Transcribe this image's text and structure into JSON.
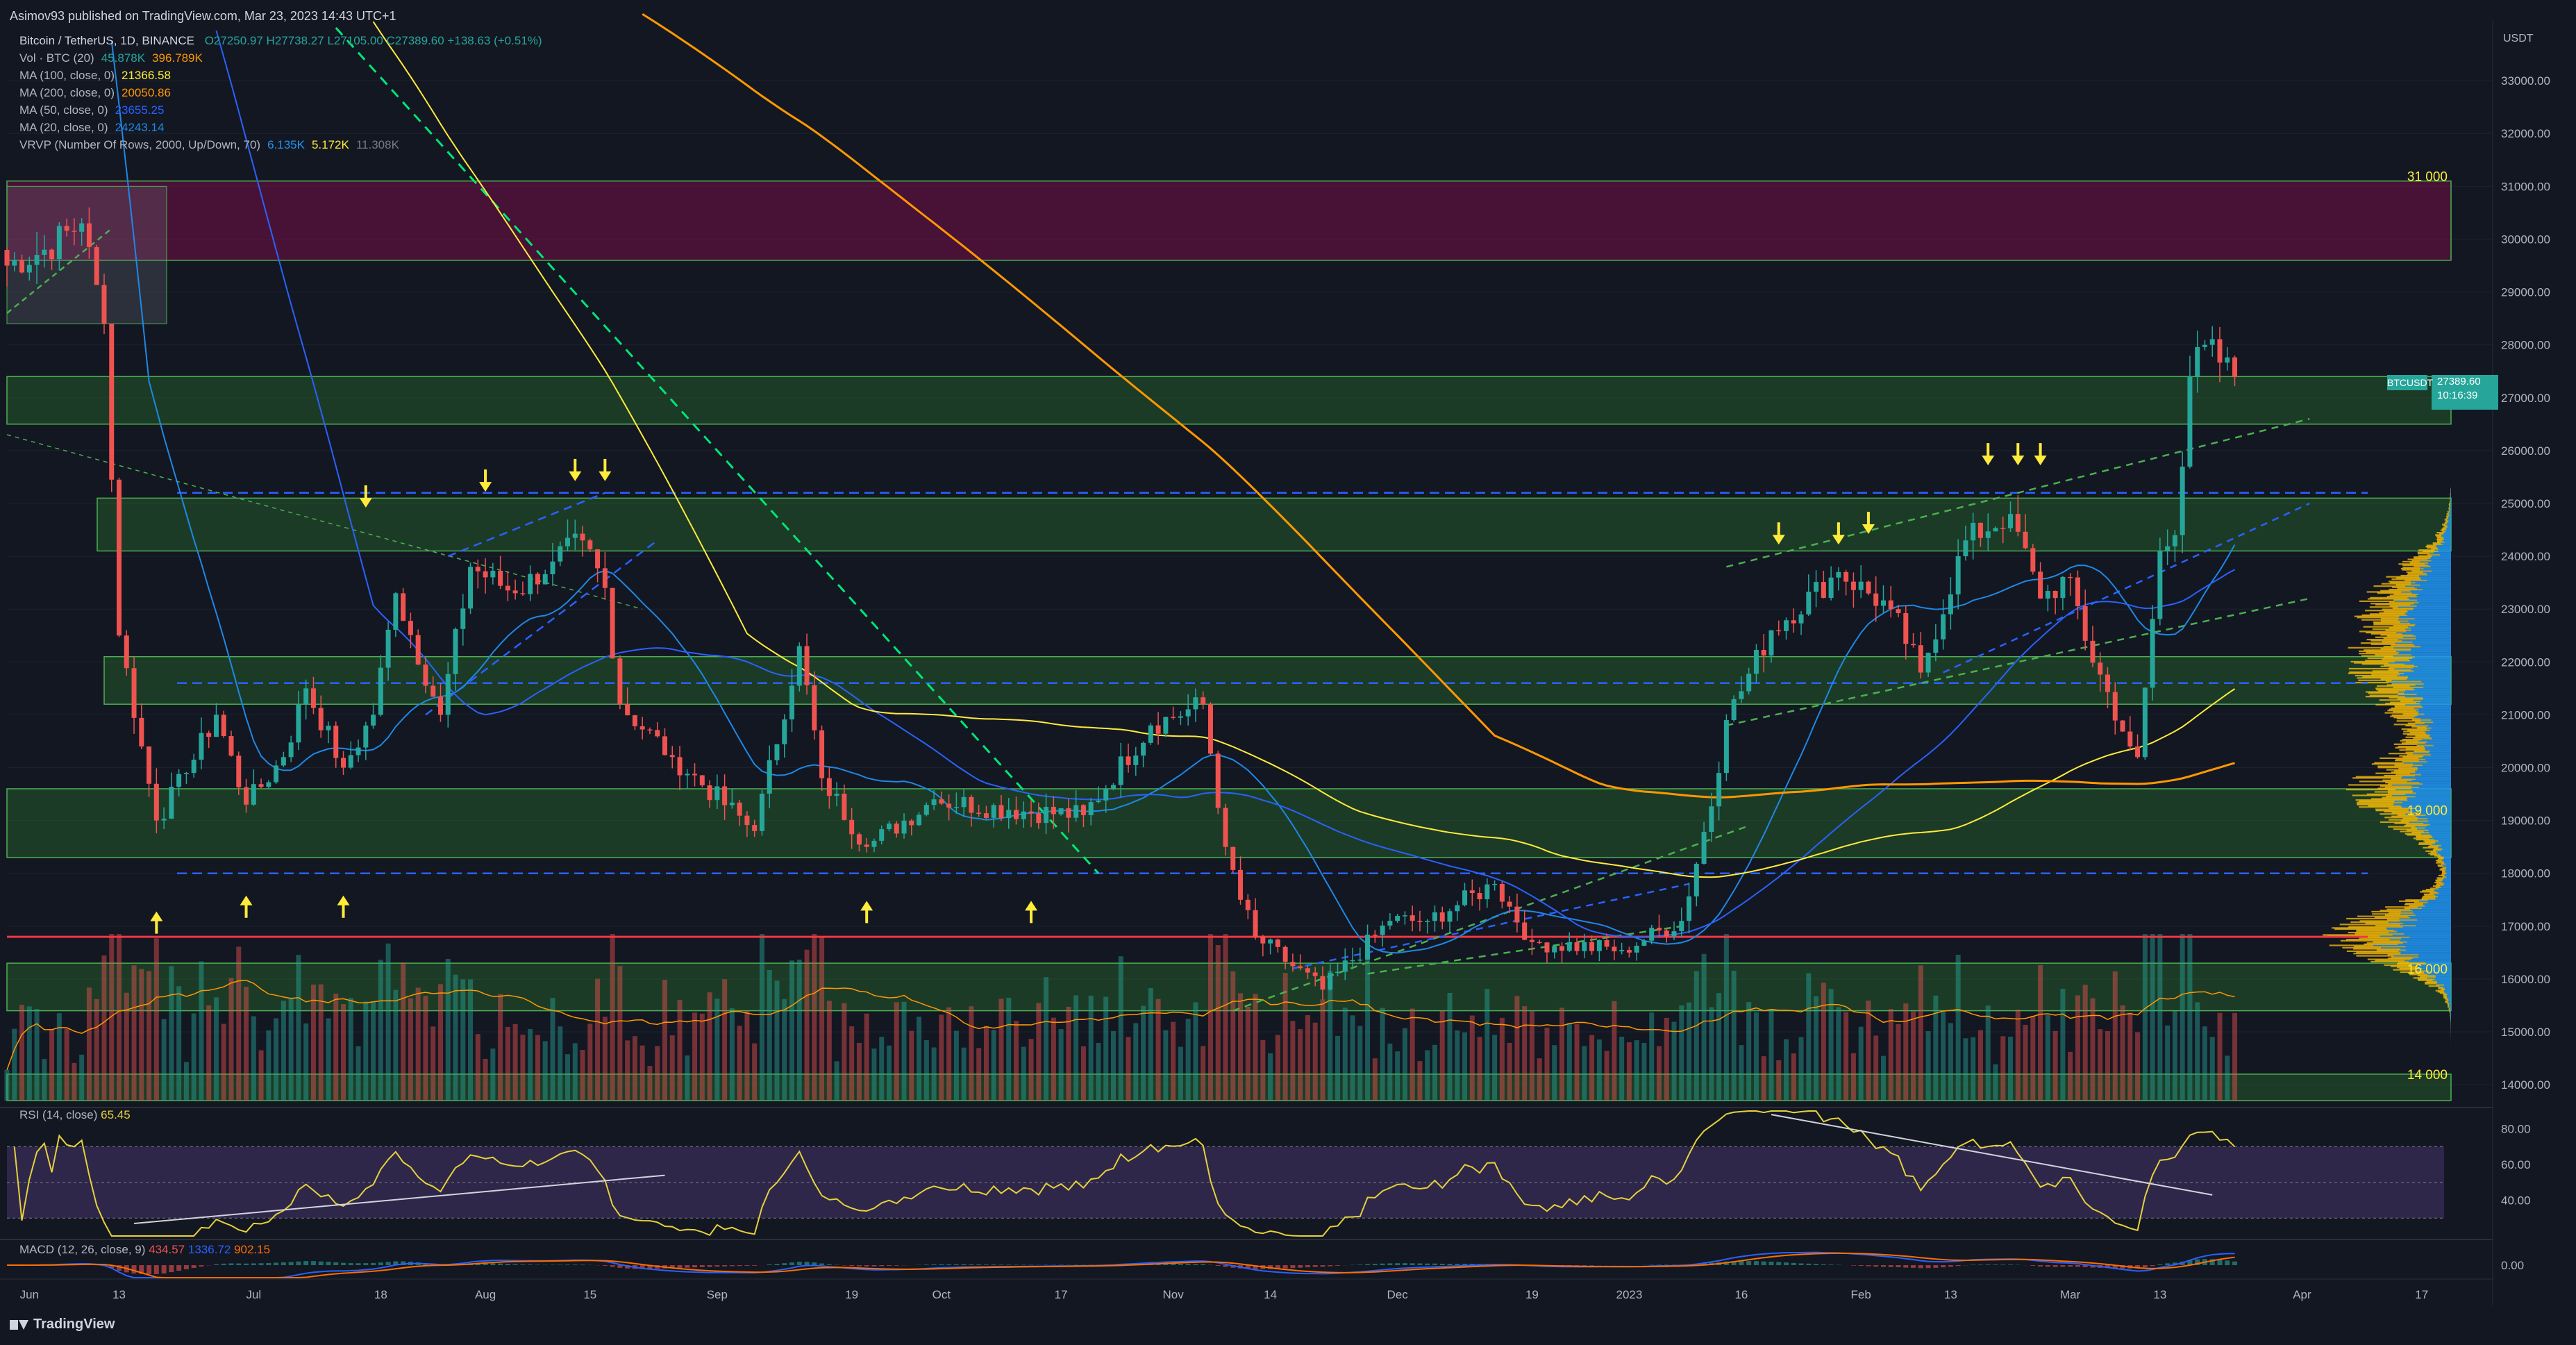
{
  "header": {
    "published": "Asimov93 published on TradingView.com, Mar 23, 2023 14:43 UTC+1",
    "symbol_line": "Bitcoin / TetherUS, 1D, BINANCE",
    "ohlc": "O27250.97 H27738.27 L27105.00 C27389.60 +138.63 (+0.51%)",
    "indicators": [
      {
        "label": "Vol · BTC (20)",
        "v1": "45.878K",
        "v2": "396.789K",
        "c1": "#26a69a",
        "c2": "#ff9800"
      },
      {
        "label": "MA (100, close, 0)",
        "v1": "21366.58",
        "v2": "",
        "c1": "#ffeb3b",
        "c2": ""
      },
      {
        "label": "MA (200, close, 0)",
        "v1": "20050.86",
        "v2": "",
        "c1": "#ff9800",
        "c2": ""
      },
      {
        "label": "MA (50, close, 0)",
        "v1": "23655.25",
        "v2": "",
        "c1": "#2962ff",
        "c2": ""
      },
      {
        "label": "MA (20, close, 0)",
        "v1": "24243.14",
        "v2": "",
        "c1": "#1e88e5",
        "c2": ""
      },
      {
        "label": "VRVP (Number Of Rows, 2000, Up/Down, 70)",
        "v1": "6.135K",
        "v2": "5.172K",
        "v3": "11.308K",
        "c1": "#2196f3",
        "c2": "#ffeb3b"
      }
    ]
  },
  "price_tag": {
    "symbol": "BTCUSDT",
    "price": "27389.60",
    "countdown": "10:16:39"
  },
  "rsi_label": {
    "text": "RSI (14, close)",
    "value": "65.45"
  },
  "macd_label": {
    "text": "MACD (12, 26, close, 9)",
    "v1": "434.57",
    "v2": "1336.72",
    "v3": "902.15"
  },
  "footer": {
    "brand": "TradingView"
  },
  "colors": {
    "up": "#26a69a",
    "down": "#ef5350",
    "bg": "#131722",
    "zone_green": "#1b5e20",
    "zone_red": "#7f1d2d"
  },
  "chart_data": {
    "type": "candlestick",
    "title": "Bitcoin / TetherUS, 1D, BINANCE",
    "y_unit": "USDT",
    "ylim": [
      13700,
      34000
    ],
    "y_ticks": [
      "14000.00",
      "15000.00",
      "16000.00",
      "17000.00",
      "18000.00",
      "19000.00",
      "20000.00",
      "21000.00",
      "22000.00",
      "23000.00",
      "24000.00",
      "25000.00",
      "26000.00",
      "27000.00",
      "28000.00",
      "29000.00",
      "30000.00",
      "31000.00",
      "32000.00",
      "33000.00"
    ],
    "x_ticks": [
      "Jun",
      "13",
      "Jul",
      "18",
      "Aug",
      "15",
      "Sep",
      "19",
      "Oct",
      "17",
      "Nov",
      "14",
      "Dec",
      "19",
      "2023",
      "16",
      "Feb",
      "13",
      "Mar",
      "13",
      "Apr",
      "17"
    ],
    "level_labels": [
      "31 000",
      "19 000",
      "16 000",
      "14 000"
    ],
    "close_anchors": [
      [
        "2022-05-29",
        29500
      ],
      [
        "2022-06-03",
        29800
      ],
      [
        "2022-06-08",
        30300
      ],
      [
        "2022-06-11",
        28400
      ],
      [
        "2022-06-13",
        22500
      ],
      [
        "2022-06-16",
        20400
      ],
      [
        "2022-06-18",
        19000
      ],
      [
        "2022-06-22",
        19900
      ],
      [
        "2022-06-26",
        21000
      ],
      [
        "2022-06-30",
        19300
      ],
      [
        "2022-07-05",
        20200
      ],
      [
        "2022-07-08",
        21500
      ],
      [
        "2022-07-13",
        20000
      ],
      [
        "2022-07-17",
        21000
      ],
      [
        "2022-07-20",
        23300
      ],
      [
        "2022-07-26",
        21000
      ],
      [
        "2022-07-30",
        23800
      ],
      [
        "2022-08-05",
        23300
      ],
      [
        "2022-08-10",
        23900
      ],
      [
        "2022-08-14",
        24300
      ],
      [
        "2022-08-17",
        23400
      ],
      [
        "2022-08-19",
        21200
      ],
      [
        "2022-08-26",
        20200
      ],
      [
        "2022-09-06",
        18800
      ],
      [
        "2022-09-12",
        22300
      ],
      [
        "2022-09-15",
        19800
      ],
      [
        "2022-09-21",
        18500
      ],
      [
        "2022-09-30",
        19400
      ],
      [
        "2022-10-10",
        19200
      ],
      [
        "2022-10-20",
        19100
      ],
      [
        "2022-10-29",
        20800
      ],
      [
        "2022-11-05",
        21200
      ],
      [
        "2022-11-08",
        18500
      ],
      [
        "2022-11-10",
        17500
      ],
      [
        "2022-11-12",
        16800
      ],
      [
        "2022-11-21",
        15800
      ],
      [
        "2022-11-30",
        17100
      ],
      [
        "2022-12-05",
        17100
      ],
      [
        "2022-12-14",
        17800
      ],
      [
        "2022-12-19",
        16700
      ],
      [
        "2022-12-31",
        16550
      ],
      [
        "2023-01-08",
        17100
      ],
      [
        "2023-01-13",
        19900
      ],
      [
        "2023-01-14",
        20900
      ],
      [
        "2023-01-20",
        22600
      ],
      [
        "2023-01-29",
        23700
      ],
      [
        "2023-02-05",
        23000
      ],
      [
        "2023-02-09",
        21800
      ],
      [
        "2023-02-15",
        24300
      ],
      [
        "2023-02-21",
        24800
      ],
      [
        "2023-02-25",
        23200
      ],
      [
        "2023-03-01",
        23600
      ],
      [
        "2023-03-03",
        22400
      ],
      [
        "2023-03-09",
        20400
      ],
      [
        "2023-03-10",
        20200
      ],
      [
        "2023-03-13",
        24100
      ],
      [
        "2023-03-15",
        24400
      ],
      [
        "2023-03-17",
        27400
      ],
      [
        "2023-03-19",
        28000
      ],
      [
        "2023-03-23",
        27389.6
      ]
    ],
    "moving_averages": [
      {
        "name": "MA (20, close, 0)",
        "color": "#1e88e5",
        "last": 24243.14
      },
      {
        "name": "MA (50, close, 0)",
        "color": "#2962ff",
        "last": 23655.25
      },
      {
        "name": "MA (100, close, 0)",
        "color": "#ffeb3b",
        "last": 21366.58
      },
      {
        "name": "MA (200, close, 0)",
        "color": "#ff9800",
        "last": 20050.86
      }
    ],
    "zones": [
      {
        "low": 29600,
        "high": 31100,
        "color": "red"
      },
      {
        "low": 26500,
        "high": 27400,
        "color": "green"
      },
      {
        "low": 24100,
        "high": 25100,
        "color": "green"
      },
      {
        "low": 21200,
        "high": 22100,
        "color": "green"
      },
      {
        "low": 18300,
        "high": 19600,
        "color": "green"
      },
      {
        "low": 15400,
        "high": 16300,
        "color": "green"
      },
      {
        "low": 13700,
        "high": 14200,
        "color": "green"
      }
    ],
    "horizontal_lines": [
      {
        "price": 25200,
        "style": "dashed",
        "color": "#2962ff"
      },
      {
        "price": 21600,
        "style": "dashed",
        "color": "#2962ff"
      },
      {
        "price": 18000,
        "style": "dashed",
        "color": "#2962ff"
      },
      {
        "price": 16800,
        "style": "solid",
        "color": "#f23645"
      }
    ],
    "rsi": {
      "value": 65.45,
      "ticks": [
        "80.00",
        "60.00",
        "40.00"
      ],
      "range": [
        20,
        90
      ]
    },
    "macd": {
      "macd": 1336.72,
      "signal": 902.15,
      "hist": 434.57,
      "ticks": [
        "0.00"
      ]
    }
  }
}
